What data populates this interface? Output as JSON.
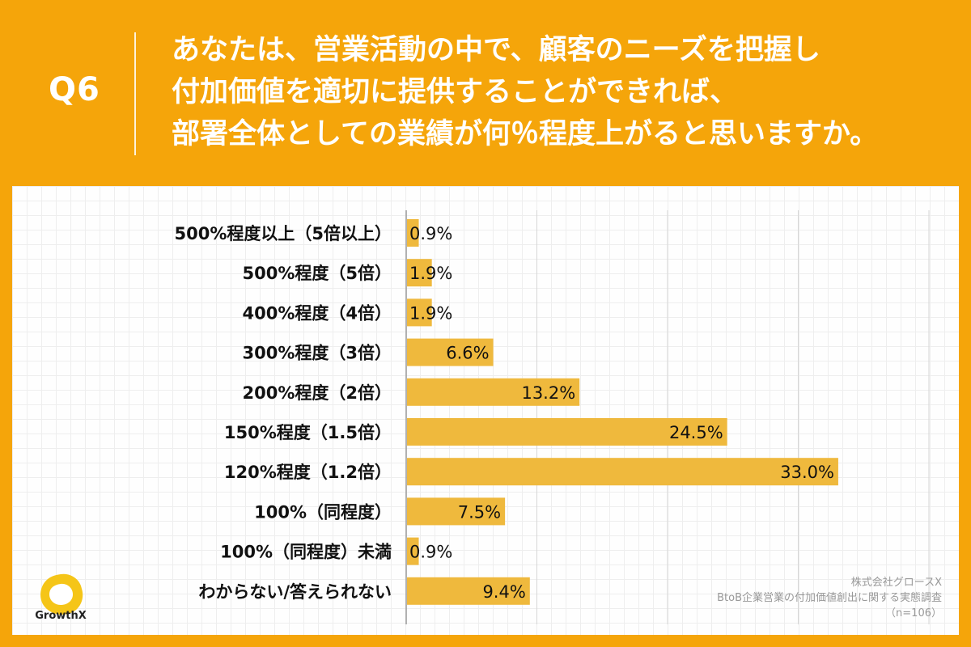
{
  "header": {
    "question_number": "Q6",
    "question_lines": [
      "あなたは、営業活動の中で、顧客のニーズを把握し",
      "付加価値を適切に提供することができれば、",
      "部署全体としての業績が何％程度上がると思いますか。"
    ]
  },
  "colors": {
    "background": "#F5A50A",
    "bar": "#EFB93D",
    "panel": "#FEFEFE"
  },
  "chart_data": {
    "type": "bar",
    "orientation": "horizontal",
    "categories": [
      "500%程度以上（5倍以上）",
      "500%程度（5倍）",
      "400%程度（4倍）",
      "300%程度（3倍）",
      "200%程度（2倍）",
      "150%程度（1.5倍）",
      "120%程度（1.2倍）",
      "100%（同程度）",
      "100%（同程度）未満",
      "わからない/答えられない"
    ],
    "values": [
      0.9,
      1.9,
      1.9,
      6.6,
      13.2,
      24.5,
      33.0,
      7.5,
      0.9,
      9.4
    ],
    "value_labels": [
      "0.9%",
      "1.9%",
      "1.9%",
      "6.6%",
      "13.2%",
      "24.5%",
      "33.0%",
      "7.5%",
      "0.9%",
      "9.4%"
    ],
    "xlim": [
      0,
      40
    ],
    "gridlines": [
      0,
      10,
      20,
      30,
      40
    ],
    "unit": "%",
    "title": "",
    "xlabel": "",
    "ylabel": ""
  },
  "footer": {
    "company": "株式会社グロースX",
    "survey": "BtoB企業営業の付加価値創出に関する実態調査",
    "sample": "（n=106）"
  },
  "logo": {
    "icon": "growthx-logo-icon",
    "text": "GrowthX"
  }
}
